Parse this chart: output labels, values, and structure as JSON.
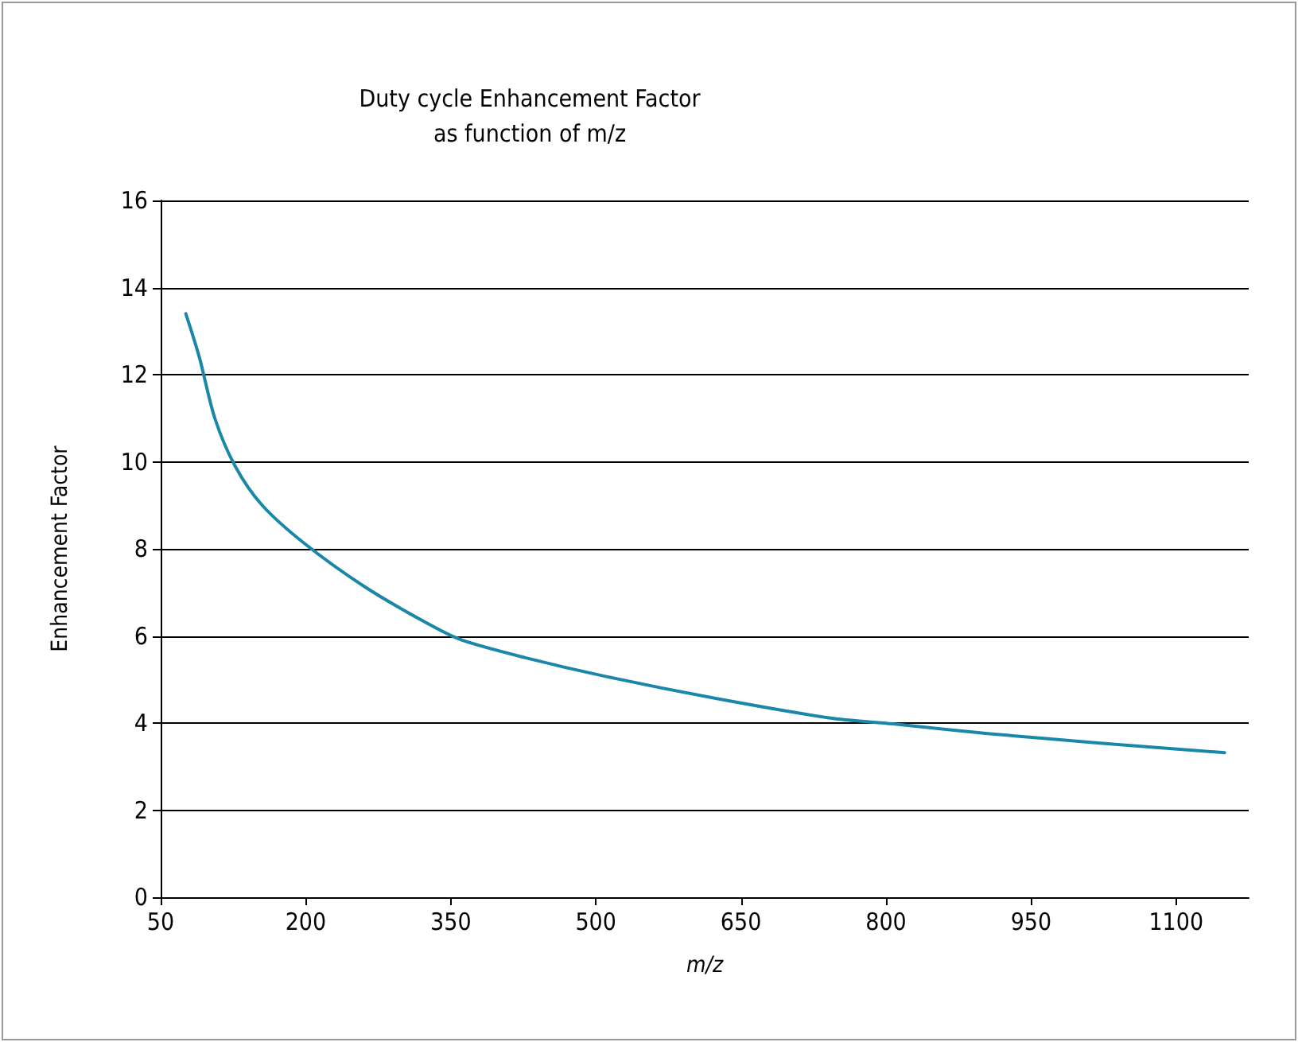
{
  "chart_data": {
    "type": "line",
    "title": "Duty cycle Enhancement Factor\nas function of m/z",
    "xlabel": "m/z",
    "ylabel": "Enhancement Factor",
    "x": [
      76,
      90,
      106,
      127,
      155,
      200,
      263,
      329,
      362,
      427,
      510,
      625,
      741,
      807,
      905,
      1021,
      1150
    ],
    "series": [
      {
        "color": "#1a87a8",
        "values": [
          13.4,
          12.4,
          11.0,
          9.9,
          9.0,
          8.1,
          7.1,
          6.25,
          5.9,
          5.5,
          5.07,
          4.56,
          4.12,
          3.98,
          3.76,
          3.54,
          3.32
        ]
      }
    ],
    "xlim": [
      50,
      1175
    ],
    "xticks": [
      50,
      200,
      350,
      500,
      650,
      800,
      950,
      1100
    ],
    "ylim": [
      0,
      16
    ],
    "yticks": [
      0,
      2,
      4,
      6,
      8,
      10,
      12,
      14,
      16
    ],
    "grid": "y",
    "marker": "none",
    "line_style": "solid"
  }
}
